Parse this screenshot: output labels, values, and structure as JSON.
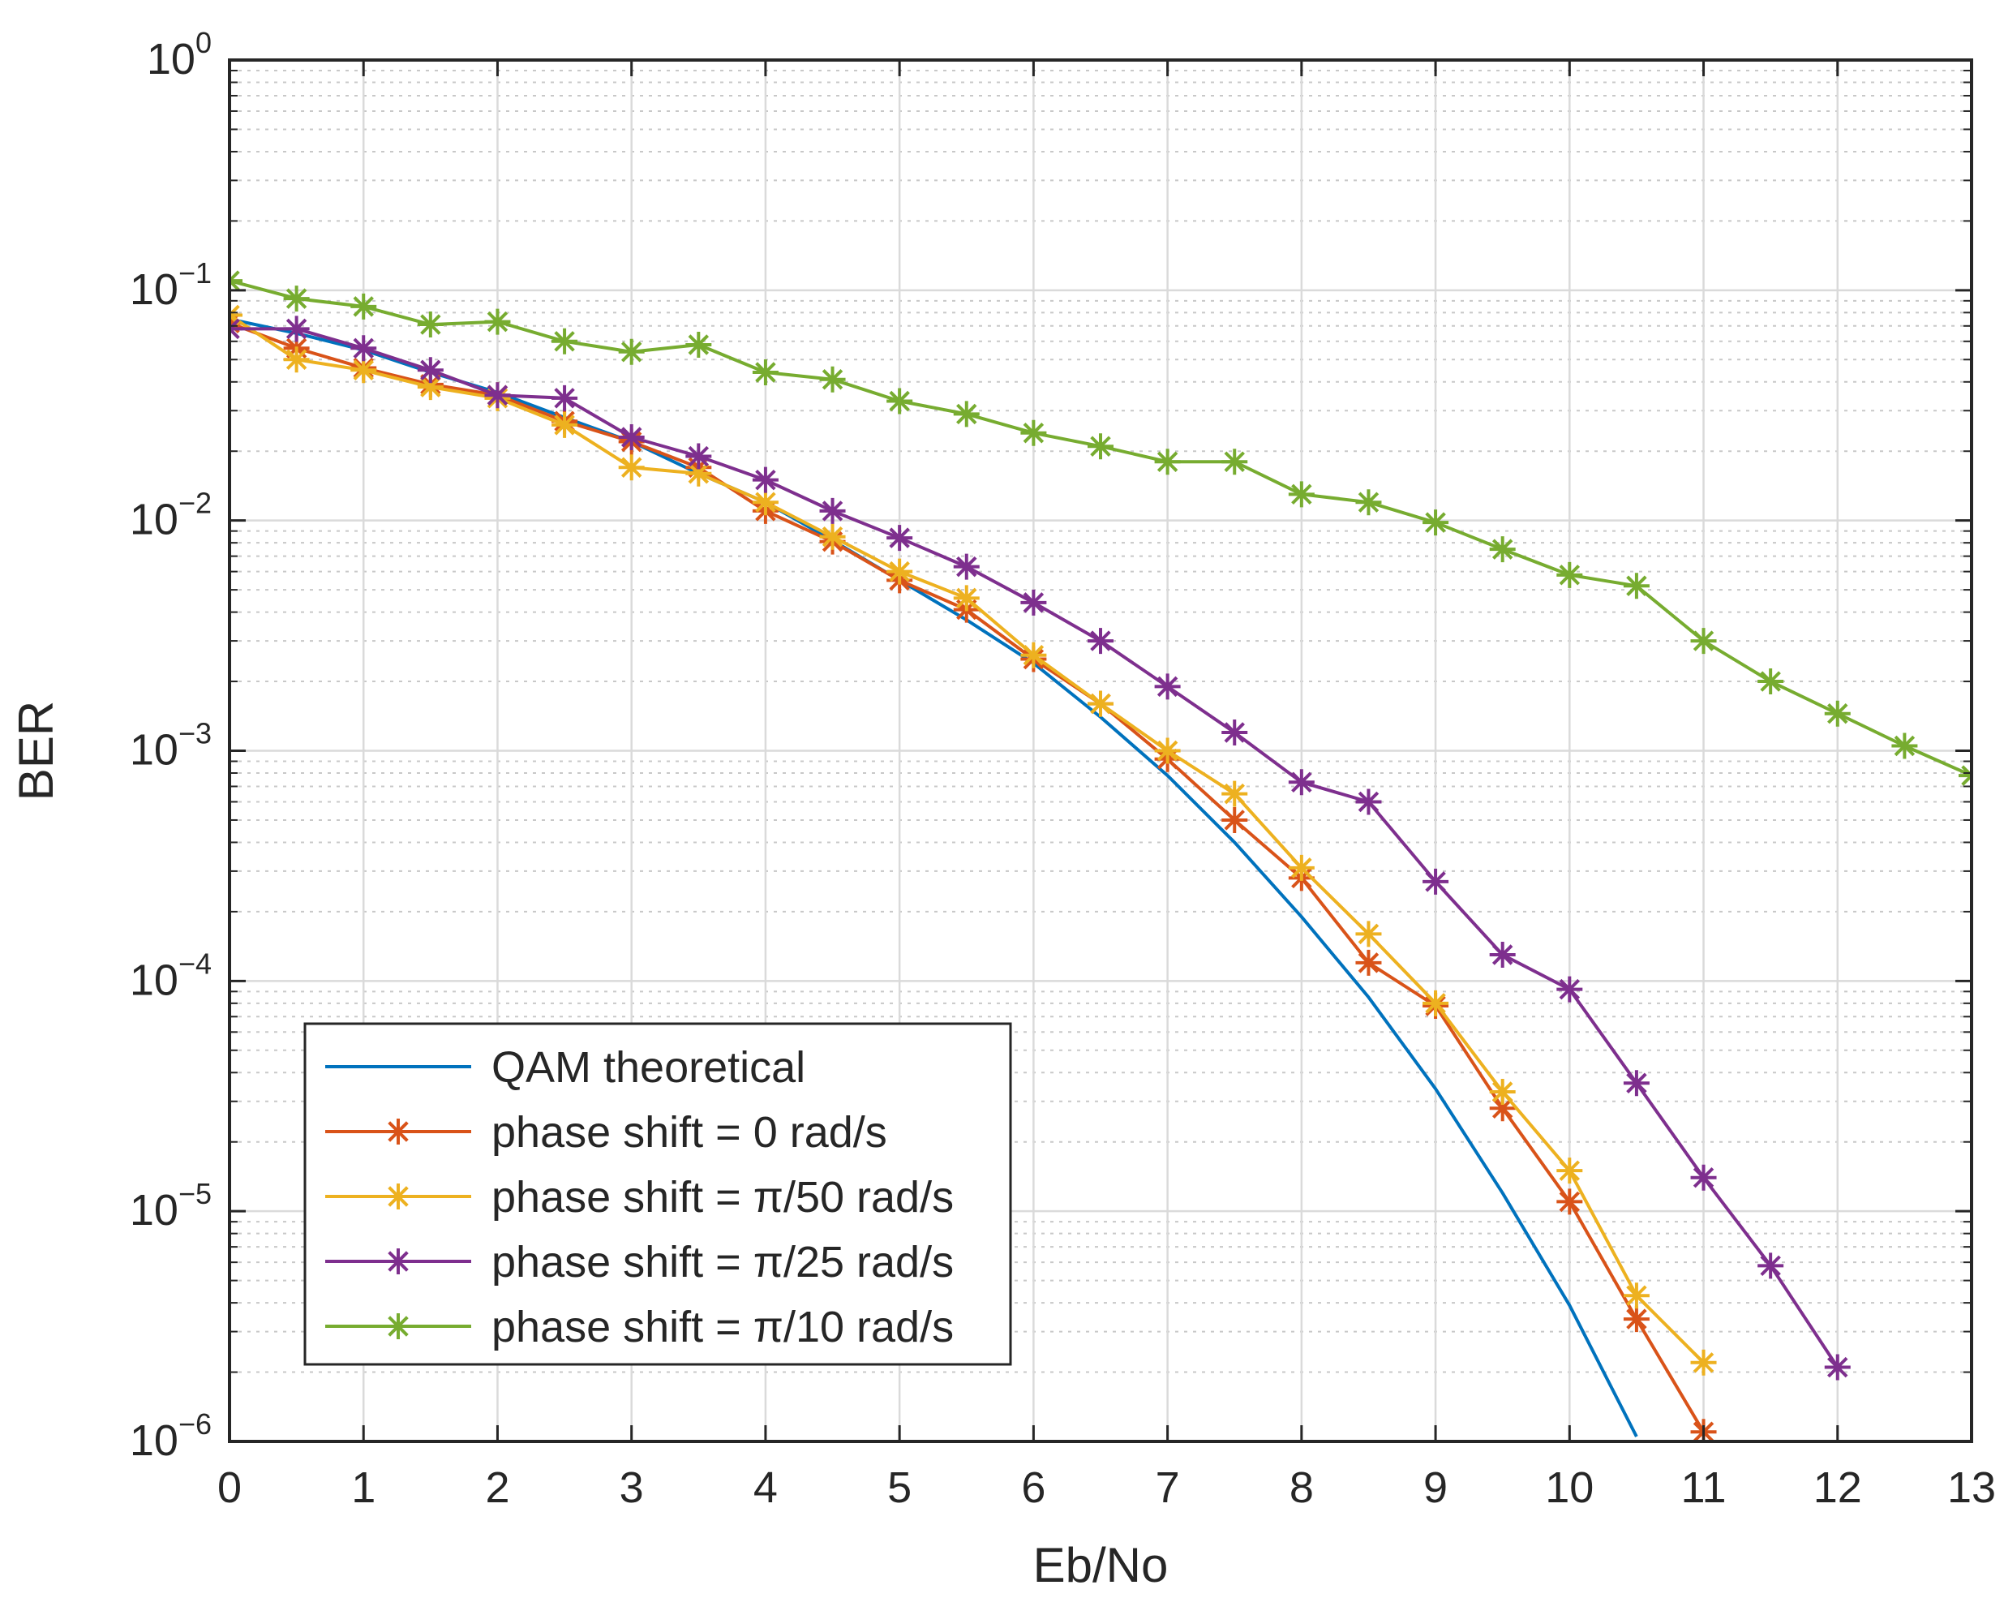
{
  "chart_data": {
    "type": "line",
    "title": "",
    "xlabel": "Eb/No",
    "ylabel": "BER",
    "xlim": [
      0,
      13
    ],
    "ylim": [
      1e-06,
      1
    ],
    "yscale": "log",
    "grid": true,
    "legend_position": "bottom-left",
    "x_ticks": [
      "0",
      "1",
      "2",
      "3",
      "4",
      "5",
      "6",
      "7",
      "8",
      "9",
      "10",
      "11",
      "12",
      "13"
    ],
    "y_ticks": [
      {
        "base": "10",
        "exp": "0"
      },
      {
        "base": "10",
        "exp": "−1"
      },
      {
        "base": "10",
        "exp": "−2"
      },
      {
        "base": "10",
        "exp": "−3"
      },
      {
        "base": "10",
        "exp": "−4"
      },
      {
        "base": "10",
        "exp": "−5"
      },
      {
        "base": "10",
        "exp": "−6"
      }
    ],
    "series": [
      {
        "name": "QAM theoretical",
        "color": "#0072BD",
        "marker": "none",
        "x": [
          0,
          0.5,
          1,
          1.5,
          2,
          2.5,
          3,
          3.5,
          4,
          4.5,
          5,
          5.5,
          6,
          6.5,
          7,
          7.5,
          8,
          8.5,
          9,
          9.5,
          10,
          10.5
        ],
        "y": [
          0.075,
          0.065,
          0.055,
          0.044,
          0.036,
          0.028,
          0.022,
          0.016,
          0.012,
          0.0082,
          0.0055,
          0.0037,
          0.0024,
          0.0014,
          0.00078,
          0.0004,
          0.00019,
          8.5e-05,
          3.4e-05,
          1.2e-05,
          3.9e-06,
          1.05e-06
        ]
      },
      {
        "name": "phase shift = 0 rad/s",
        "color": "#D95319",
        "marker": "star",
        "x": [
          0,
          0.5,
          1,
          1.5,
          2,
          2.5,
          3,
          3.5,
          4,
          4.5,
          5,
          5.5,
          6,
          6.5,
          7,
          7.5,
          8,
          8.5,
          9,
          9.5,
          10,
          10.5,
          11
        ],
        "y": [
          0.072,
          0.056,
          0.046,
          0.039,
          0.035,
          0.027,
          0.022,
          0.017,
          0.011,
          0.0081,
          0.0055,
          0.0041,
          0.0025,
          0.0016,
          0.00092,
          0.0005,
          0.00028,
          0.00012,
          7.8e-05,
          2.8e-05,
          1.1e-05,
          3.4e-06,
          1.1e-06
        ]
      },
      {
        "name": "phase shift = π/50 rad/s",
        "color": "#EDB120",
        "marker": "star",
        "x": [
          0,
          0.5,
          1,
          1.5,
          2,
          2.5,
          3,
          3.5,
          4,
          4.5,
          5,
          5.5,
          6,
          6.5,
          7,
          7.5,
          8,
          8.5,
          9,
          9.5,
          10,
          10.5,
          11
        ],
        "y": [
          0.078,
          0.05,
          0.045,
          0.038,
          0.034,
          0.026,
          0.017,
          0.016,
          0.012,
          0.0085,
          0.006,
          0.0046,
          0.0026,
          0.0016,
          0.001,
          0.00065,
          0.00031,
          0.00016,
          8e-05,
          3.3e-05,
          1.5e-05,
          4.3e-06,
          2.2e-06
        ]
      },
      {
        "name": "phase shift = π/25 rad/s",
        "color": "#7E2F8E",
        "marker": "star",
        "x": [
          0,
          0.5,
          1,
          1.5,
          2,
          2.5,
          3,
          3.5,
          4,
          4.5,
          5,
          5.5,
          6,
          6.5,
          7,
          7.5,
          8,
          8.5,
          9,
          9.5,
          10,
          10.5,
          11,
          11.5,
          12
        ],
        "y": [
          0.068,
          0.068,
          0.056,
          0.045,
          0.035,
          0.034,
          0.023,
          0.019,
          0.015,
          0.011,
          0.0084,
          0.0063,
          0.0044,
          0.003,
          0.0019,
          0.0012,
          0.00073,
          0.0006,
          0.00027,
          0.00013,
          9.2e-05,
          3.6e-05,
          1.4e-05,
          5.8e-06,
          2.1e-06
        ]
      },
      {
        "name": "phase shift = π/10 rad/s",
        "color": "#77AC30",
        "marker": "star",
        "x": [
          0,
          0.5,
          1,
          1.5,
          2,
          2.5,
          3,
          3.5,
          4,
          4.5,
          5,
          5.5,
          6,
          6.5,
          7,
          7.5,
          8,
          8.5,
          9,
          9.5,
          10,
          10.5,
          11,
          11.5,
          12,
          12.5,
          13
        ],
        "y": [
          0.11,
          0.092,
          0.085,
          0.071,
          0.073,
          0.06,
          0.054,
          0.058,
          0.044,
          0.041,
          0.033,
          0.029,
          0.024,
          0.021,
          0.018,
          0.018,
          0.013,
          0.012,
          0.0098,
          0.0075,
          0.0058,
          0.0052,
          0.003,
          0.002,
          0.00145,
          0.00105,
          0.00078
        ]
      }
    ]
  }
}
